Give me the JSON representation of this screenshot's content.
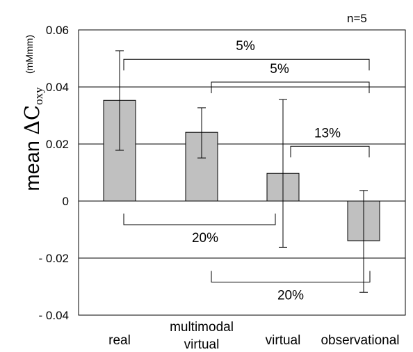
{
  "chart_data": {
    "type": "bar",
    "categories": [
      [
        "real"
      ],
      [
        "multimodal",
        "virtual"
      ],
      [
        "virtual"
      ],
      [
        "observational"
      ]
    ],
    "values": [
      0.0353,
      0.0241,
      0.0097,
      -0.0139
    ],
    "error_bars": [
      [
        0.0178,
        0.0527
      ],
      [
        0.0151,
        0.0327
      ],
      [
        -0.0162,
        0.0356
      ],
      [
        -0.032,
        0.0037
      ]
    ],
    "ylabel": {
      "prefix": "mean ",
      "symbol": "ΔC",
      "subscript": "oxy"
    },
    "yunit": "(mMmm)",
    "sample_label": "n=5",
    "ylim": [
      -0.04,
      0.06
    ],
    "yticks": [
      0.06,
      0.04,
      0.02,
      0,
      -0.02,
      -0.04
    ],
    "ytick_labels": [
      "0.06",
      "0.04",
      "0.02",
      "0",
      "- 0.02",
      "- 0.04"
    ],
    "grid": true,
    "bar_color": "#c0c0c0",
    "comparisons": [
      {
        "from": 0,
        "to": 3,
        "label": "5%",
        "side": "above",
        "level": 0.0497
      },
      {
        "from": 1,
        "to": 3,
        "label": "5%",
        "side": "above",
        "level": 0.0417
      },
      {
        "from": 2,
        "to": 3,
        "label": "13%",
        "side": "above",
        "level": 0.0192
      },
      {
        "from": 0,
        "to": 2,
        "label": "20%",
        "side": "below",
        "level": -0.0083
      },
      {
        "from": 1,
        "to": 3,
        "label": "20%",
        "side": "below",
        "level": -0.0284
      }
    ]
  }
}
